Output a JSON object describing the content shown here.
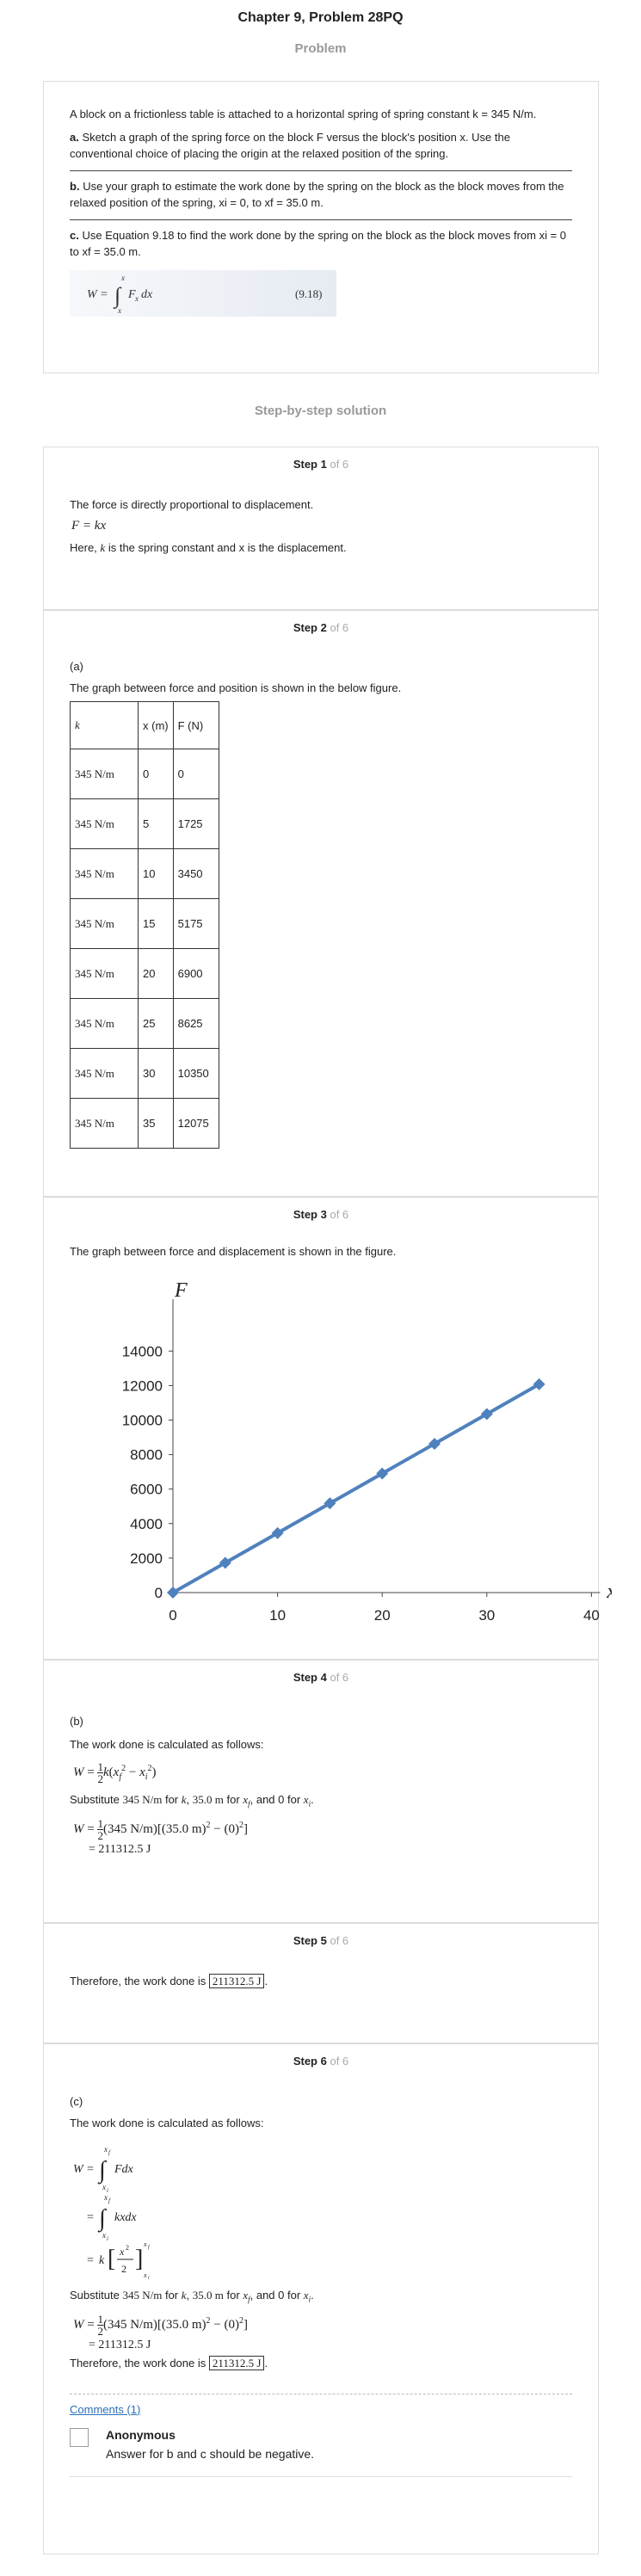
{
  "page": {
    "title": "Chapter 9, Problem 28PQ",
    "problem_heading": "Problem",
    "solution_heading": "Step-by-step solution"
  },
  "problem": {
    "intro": "A block on a frictionless table is attached to a horizontal spring of spring constant k = 345 N/m.",
    "part_a_label": "a.",
    "part_a": "Sketch a graph of the spring force on the block F versus the block's position x. Use the conventional choice of placing the origin at the relaxed position of the spring.",
    "part_b_label": "b.",
    "part_b": "Use your graph to estimate the work done by the spring on the block as the block moves from the relaxed position of the spring, xi = 0, to xf = 35.0 m.",
    "part_c_label": "c.",
    "part_c": "Use Equation 9.18 to find the work done by the spring on the block as the block moves from xi = 0 to xf = 35.0 m.",
    "equation_number": "(9.18)"
  },
  "steps": [
    {
      "label": "Step 1",
      "of": "of 6",
      "line1": "The force is directly proportional to displacement.",
      "formula": "F = kx",
      "line2_pre": "Here,",
      "line2_k": "k",
      "line2_post": "is the spring constant and x is the displacement."
    },
    {
      "label": "Step 2",
      "of": "of 6",
      "part": "(a)",
      "text": "The graph between force and position is shown in the below figure.",
      "table_headers": [
        "k",
        "x (m)",
        "F (N)"
      ],
      "table_rows": [
        [
          "345 N/m",
          "0",
          "0"
        ],
        [
          "345 N/m",
          "5",
          "1725"
        ],
        [
          "345 N/m",
          "10",
          "3450"
        ],
        [
          "345 N/m",
          "15",
          "5175"
        ],
        [
          "345 N/m",
          "20",
          "6900"
        ],
        [
          "345 N/m",
          "25",
          "8625"
        ],
        [
          "345 N/m",
          "30",
          "10350"
        ],
        [
          "345 N/m",
          "35",
          "12075"
        ]
      ]
    },
    {
      "label": "Step 3",
      "of": "of 6",
      "text": "The graph between force and displacement is shown in the figure."
    },
    {
      "label": "Step 4",
      "of": "of 6",
      "part": "(b)",
      "text": "The work done is calculated as follows:",
      "subst_pre": "Substitute",
      "subst_k": "345 N/m",
      "subst_for_k": "for",
      "subst_k_sym": "k",
      "subst_x": "35.0 m",
      "subst_for_x": "for",
      "subst_x_sym": "x",
      "subst_x_sub": "f",
      "subst_and": ", and 0 for",
      "subst_xi_sym": "x",
      "subst_xi_sub": "i",
      "result": "= 211312.5 J"
    },
    {
      "label": "Step 5",
      "of": "of 6",
      "text_pre": "Therefore, the work done is",
      "answer": "211312.5 J",
      "text_post": "."
    },
    {
      "label": "Step 6",
      "of": "of 6",
      "part": "(c)",
      "text": "The work done is calculated as follows:",
      "subst_pre": "Substitute",
      "subst_k": "345 N/m",
      "subst_for_k": "for",
      "subst_k_sym": "k",
      "subst_x": "35.0 m",
      "subst_for_x": "for",
      "subst_x_sym": "x",
      "subst_x_sub": "f",
      "subst_and": ", and 0 for",
      "subst_xi_sym": "x",
      "subst_xi_sub": "i",
      "result": "= 211312.5 J",
      "final_pre": "Therefore, the work done is",
      "answer": "211312.5 J",
      "final_post": "."
    }
  ],
  "comments": {
    "link": "Comments (1)",
    "author": "Anonymous",
    "text": "Answer for b and c should be negative."
  },
  "chart_data": {
    "type": "line",
    "x": [
      0,
      5,
      10,
      15,
      20,
      25,
      30,
      35
    ],
    "series": [
      {
        "values": [
          0,
          1725,
          3450,
          5175,
          6900,
          8625,
          10350,
          12075
        ]
      }
    ],
    "xlabel": "x",
    "ylabel": "F",
    "xlim": [
      0,
      40
    ],
    "ylim": [
      0,
      14000
    ],
    "xticks": [
      "0",
      "10",
      "20",
      "30",
      "40"
    ],
    "yticks": [
      "0",
      "2000",
      "4000",
      "6000",
      "8000",
      "10000",
      "12000",
      "14000"
    ],
    "color": "#4f81bd",
    "grid": false
  }
}
